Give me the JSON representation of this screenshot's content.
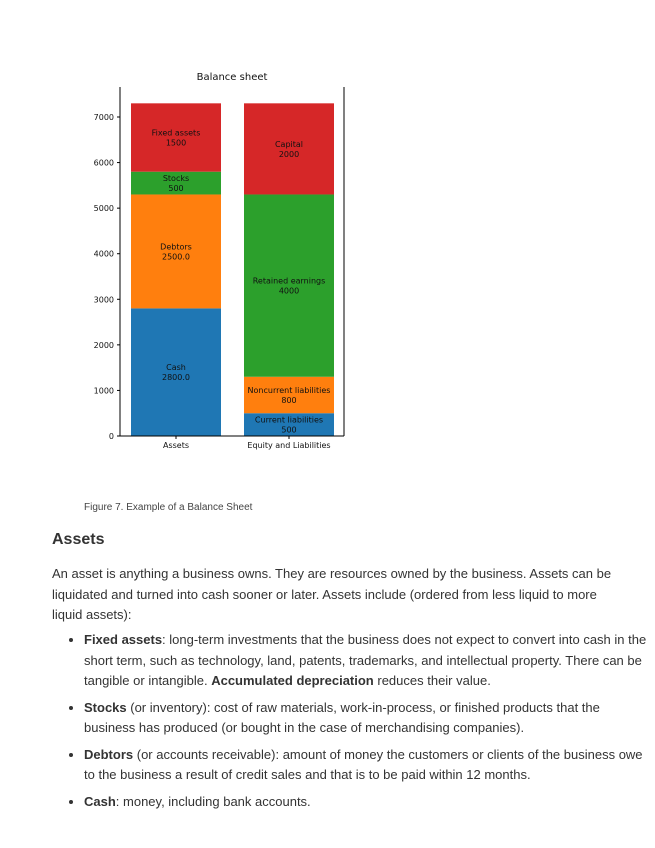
{
  "chart_data": {
    "type": "stacked-bar",
    "title": "Balance sheet",
    "categories": [
      "Assets",
      "Equity and Liabilities"
    ],
    "ylim": [
      0,
      7500
    ],
    "yticks": [
      0,
      1000,
      2000,
      3000,
      4000,
      5000,
      6000,
      7000
    ],
    "grid": false,
    "stacks": [
      [
        {
          "name": "Cash",
          "value": 2800,
          "label": "2800.0",
          "color": "#1f77b4"
        },
        {
          "name": "Debtors",
          "value": 2500,
          "label": "2500.0",
          "color": "#ff7f0e"
        },
        {
          "name": "Stocks",
          "value": 500,
          "label": "500",
          "color": "#2ca02c"
        },
        {
          "name": "Fixed assets",
          "value": 1500,
          "label": "1500",
          "color": "#d62728"
        }
      ],
      [
        {
          "name": "Current liabilities",
          "value": 500,
          "label": "500",
          "color": "#1f77b4"
        },
        {
          "name": "Noncurrent liabilities",
          "value": 800,
          "label": "800",
          "color": "#ff7f0e"
        },
        {
          "name": "Retained earnings",
          "value": 4000,
          "label": "4000",
          "color": "#2ca02c"
        },
        {
          "name": "Capital",
          "value": 2000,
          "label": "2000",
          "color": "#d62728"
        }
      ]
    ]
  },
  "caption": "Figure 7. Example of a Balance Sheet",
  "heading": "Assets",
  "intro": "An asset is anything a business owns. They are resources owned by the business. Assets can be liquidated and turned into cash sooner or later. Assets include (ordered from less liquid to more liquid assets):",
  "items": [
    {
      "term": "Fixed assets",
      "text": ": long-term investments that the business does not expect to convert into cash in the short term, such as technology, land, patents, trademarks, and intellectual property. There can be tangible or intangible. ",
      "term2": "Accumulated depreciation",
      "text2": " reduces their value."
    },
    {
      "term": "Stocks",
      "text": " (or inventory): cost of raw materials, work-in-process, or finished products that the business has produced (or bought in the case of merchandising companies)."
    },
    {
      "term": "Debtors",
      "text": " (or accounts receivable): amount of money the customers or clients of the business owe to the business a result of credit sales and that is to be paid within 12 months."
    },
    {
      "term": "Cash",
      "text": ": money, including bank accounts."
    }
  ]
}
